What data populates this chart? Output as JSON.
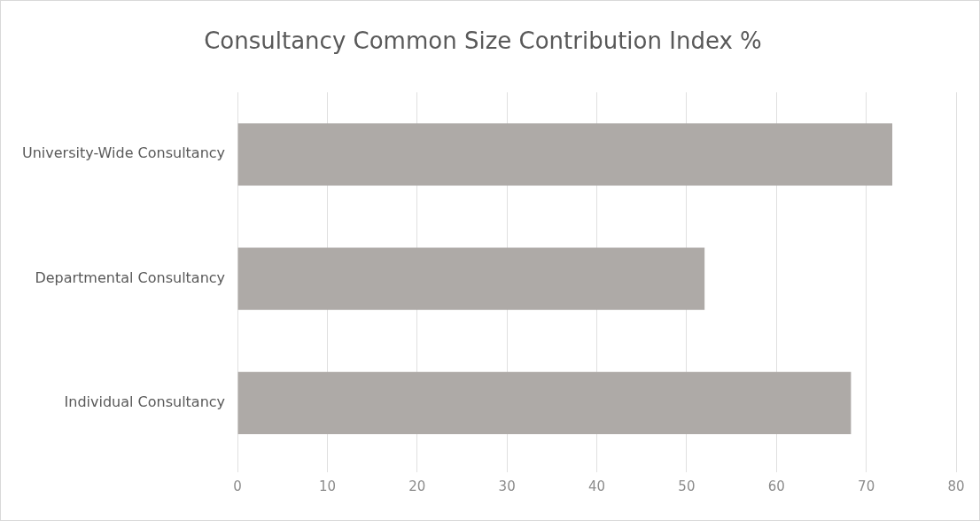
{
  "chart_data": {
    "type": "bar",
    "orientation": "horizontal",
    "title": "Consultancy Common Size Contribution Index %",
    "categories": [
      "University-Wide Consultancy",
      "Departmental Consultancy",
      "Individual Consultancy"
    ],
    "values": [
      72.9,
      52.0,
      68.3
    ],
    "color": "#aeaaa7",
    "xlim": [
      0,
      80
    ],
    "xticks": [
      0,
      10,
      20,
      30,
      40,
      50,
      60,
      70,
      80
    ],
    "grid": "x",
    "legend": false
  }
}
